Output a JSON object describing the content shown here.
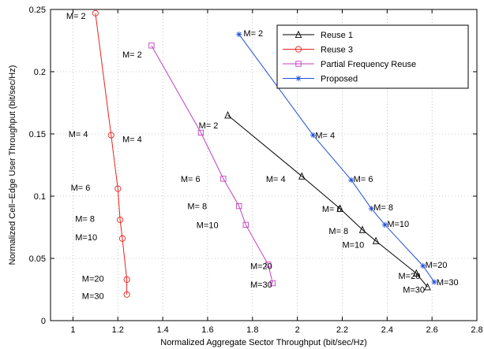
{
  "chart_data": {
    "type": "line",
    "xlabel": "Normalized Aggregate Sector Throughput (bit/sec/Hz)",
    "ylabel": "Normalized Cell−Edge User Throughput (bit/sec/Hz)",
    "xlim": [
      0.9,
      2.8
    ],
    "ylim": [
      0,
      0.25
    ],
    "xticks": [
      1,
      1.2,
      1.4,
      1.6,
      1.8,
      2,
      2.2,
      2.4,
      2.6,
      2.8
    ],
    "xtick_labels": [
      "1",
      "1.2",
      "1.4",
      "1.6",
      "1.8",
      "2",
      "2.2",
      "2.4",
      "2.6",
      "2.8"
    ],
    "yticks": [
      0,
      0.05,
      0.1,
      0.15,
      0.2,
      0.25
    ],
    "ytick_labels": [
      "0",
      "0.05",
      "0.1",
      "0.15",
      "0.2",
      "0.25"
    ],
    "grid": "dotted",
    "legend_position": "top-right",
    "series": [
      {
        "name": "Reuse 1",
        "color": "#000000",
        "marker": "triangle",
        "x": [
          1.69,
          2.02,
          2.19,
          2.29,
          2.35,
          2.53,
          2.58
        ],
        "y": [
          0.165,
          0.116,
          0.09,
          0.073,
          0.064,
          0.038,
          0.027
        ]
      },
      {
        "name": "Reuse 3",
        "color": "#e8231f",
        "marker": "circle",
        "x": [
          1.1,
          1.17,
          1.2,
          1.21,
          1.22,
          1.24,
          1.24
        ],
        "y": [
          0.247,
          0.149,
          0.106,
          0.081,
          0.066,
          0.033,
          0.021
        ]
      },
      {
        "name": "Partial Frequency Reuse",
        "color": "#c040c0",
        "marker": "square",
        "x": [
          1.35,
          1.57,
          1.67,
          1.74,
          1.77,
          1.87,
          1.89
        ],
        "y": [
          0.221,
          0.151,
          0.114,
          0.092,
          0.077,
          0.045,
          0.03
        ]
      },
      {
        "name": "Proposed",
        "color": "#1f4fd6",
        "marker": "star",
        "x": [
          1.74,
          2.07,
          2.24,
          2.33,
          2.39,
          2.56,
          2.61
        ],
        "y": [
          0.23,
          0.149,
          0.113,
          0.09,
          0.077,
          0.044,
          0.031
        ]
      }
    ],
    "annotations": [
      {
        "text": "M= 2",
        "x": 0.97,
        "y": 0.245
      },
      {
        "text": "M= 4",
        "x": 0.98,
        "y": 0.15
      },
      {
        "text": "M= 6",
        "x": 0.99,
        "y": 0.107
      },
      {
        "text": "M= 8",
        "x": 1.01,
        "y": 0.082
      },
      {
        "text": "M=10",
        "x": 1.01,
        "y": 0.067
      },
      {
        "text": "M=20",
        "x": 1.04,
        "y": 0.034
      },
      {
        "text": "M=30",
        "x": 1.04,
        "y": 0.02
      },
      {
        "text": "M= 2",
        "x": 1.22,
        "y": 0.214
      },
      {
        "text": "M= 4",
        "x": 1.22,
        "y": 0.146
      },
      {
        "text": "M= 6",
        "x": 1.48,
        "y": 0.114
      },
      {
        "text": "M= 8",
        "x": 1.51,
        "y": 0.092
      },
      {
        "text": "M=10",
        "x": 1.55,
        "y": 0.077
      },
      {
        "text": "M=20",
        "x": 1.79,
        "y": 0.044
      },
      {
        "text": "M=30",
        "x": 1.79,
        "y": 0.029
      },
      {
        "text": "M= 2",
        "x": 1.56,
        "y": 0.157
      },
      {
        "text": "M= 4",
        "x": 1.86,
        "y": 0.114
      },
      {
        "text": "M= 6",
        "x": 2.11,
        "y": 0.09
      },
      {
        "text": "M= 8",
        "x": 2.14,
        "y": 0.072
      },
      {
        "text": "M=10",
        "x": 2.2,
        "y": 0.061
      },
      {
        "text": "M=20",
        "x": 2.45,
        "y": 0.036
      },
      {
        "text": "M=30",
        "x": 2.47,
        "y": 0.025
      },
      {
        "text": "M= 2",
        "x": 1.76,
        "y": 0.231
      },
      {
        "text": "M= 4",
        "x": 2.08,
        "y": 0.149
      },
      {
        "text": "M= 6",
        "x": 2.25,
        "y": 0.114
      },
      {
        "text": "M= 8",
        "x": 2.34,
        "y": 0.091
      },
      {
        "text": "M=10",
        "x": 2.4,
        "y": 0.078
      },
      {
        "text": "M=20",
        "x": 2.57,
        "y": 0.045
      },
      {
        "text": "M=30",
        "x": 2.62,
        "y": 0.031
      }
    ]
  }
}
